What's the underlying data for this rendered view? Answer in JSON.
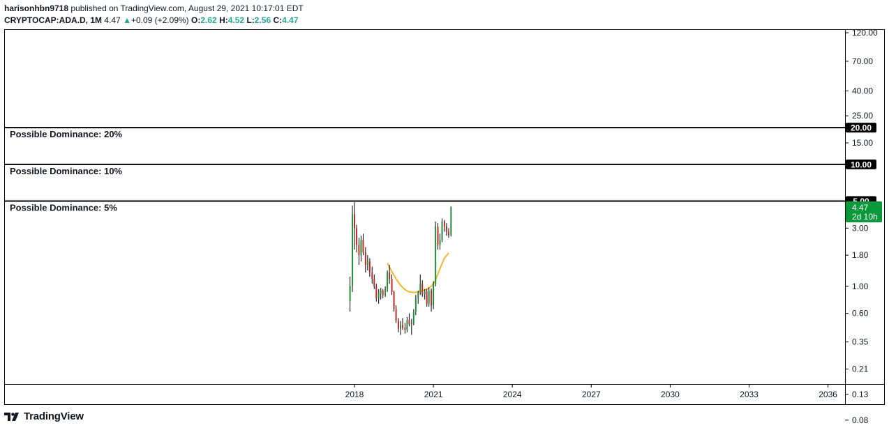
{
  "header": {
    "author": "harisonhbn9718",
    "published_text": "published on TradingView.com, August 29, 2021 10:17:01 EDT",
    "symbol": "CRYPTOCAP:ADA.D, 1M",
    "last": "4.47",
    "change": "+0.09 (+2.09%)",
    "o_label": "O:",
    "o_value": "2.62",
    "h_label": "H:",
    "h_value": "4.52",
    "l_label": "L:",
    "l_value": "2.56",
    "c_label": "C:",
    "c_value": "4.47"
  },
  "logo": {
    "text": "TradingView",
    "icon": "tradingview-logo-icon"
  },
  "colors": {
    "up": "#26a69a",
    "down": "#ef5350",
    "candle_up": "#1f8f3a",
    "candle_down": "#c62828",
    "ma": "#f5b52a",
    "line": "#000000",
    "last_badge": "#089a3a"
  },
  "chart_data": {
    "type": "candlestick",
    "y_scale": "log",
    "y_ticks": [
      "120.00",
      "70.00",
      "40.00",
      "25.00",
      "15.00",
      "3.00",
      "1.80",
      "1.00",
      "0.60",
      "0.35",
      "0.21",
      "0.13",
      "0.08"
    ],
    "x_ticks": [
      "2018",
      "2021",
      "2024",
      "2027",
      "2030",
      "2033",
      "2036"
    ],
    "horizontal_lines": [
      {
        "value": 20,
        "badge": "20.00",
        "label": "Possible Dominance: 20%"
      },
      {
        "value": 10,
        "badge": "10.00",
        "label": "Possible Dominance: 10%"
      },
      {
        "value": 5,
        "badge": "5.00",
        "label": "Possible Dominance: 5%"
      }
    ],
    "last_price": {
      "value": 4.47,
      "badge": "4.47",
      "countdown": "2d 10h"
    },
    "candles": [
      {
        "t": 2017.83,
        "o": 0.75,
        "h": 1.2,
        "l": 0.62,
        "c": 1.0
      },
      {
        "t": 2017.92,
        "o": 1.0,
        "h": 4.6,
        "l": 0.9,
        "c": 3.9
      },
      {
        "t": 2018.0,
        "o": 3.9,
        "h": 4.9,
        "l": 2.0,
        "c": 3.0
      },
      {
        "t": 2018.08,
        "o": 3.0,
        "h": 3.2,
        "l": 1.9,
        "c": 2.2
      },
      {
        "t": 2018.17,
        "o": 2.2,
        "h": 2.5,
        "l": 1.5,
        "c": 1.8
      },
      {
        "t": 2018.25,
        "o": 1.8,
        "h": 2.6,
        "l": 1.6,
        "c": 2.4
      },
      {
        "t": 2018.33,
        "o": 2.4,
        "h": 2.7,
        "l": 1.8,
        "c": 1.9
      },
      {
        "t": 2018.42,
        "o": 1.9,
        "h": 2.1,
        "l": 1.3,
        "c": 1.5
      },
      {
        "t": 2018.5,
        "o": 1.5,
        "h": 1.8,
        "l": 1.35,
        "c": 1.6
      },
      {
        "t": 2018.58,
        "o": 1.6,
        "h": 1.7,
        "l": 1.2,
        "c": 1.3
      },
      {
        "t": 2018.67,
        "o": 1.3,
        "h": 1.45,
        "l": 1.05,
        "c": 1.15
      },
      {
        "t": 2018.75,
        "o": 1.15,
        "h": 1.25,
        "l": 0.95,
        "c": 1.0
      },
      {
        "t": 2018.83,
        "o": 1.0,
        "h": 1.05,
        "l": 0.75,
        "c": 0.8
      },
      {
        "t": 2018.92,
        "o": 0.8,
        "h": 0.95,
        "l": 0.72,
        "c": 0.88
      },
      {
        "t": 2019.0,
        "o": 0.88,
        "h": 0.97,
        "l": 0.78,
        "c": 0.92
      },
      {
        "t": 2019.08,
        "o": 0.92,
        "h": 0.95,
        "l": 0.8,
        "c": 0.85
      },
      {
        "t": 2019.17,
        "o": 0.85,
        "h": 1.0,
        "l": 0.82,
        "c": 0.95
      },
      {
        "t": 2019.25,
        "o": 0.95,
        "h": 1.35,
        "l": 0.9,
        "c": 1.3
      },
      {
        "t": 2019.33,
        "o": 1.3,
        "h": 1.5,
        "l": 1.05,
        "c": 1.15
      },
      {
        "t": 2019.42,
        "o": 1.15,
        "h": 1.25,
        "l": 0.85,
        "c": 0.9
      },
      {
        "t": 2019.5,
        "o": 0.9,
        "h": 0.92,
        "l": 0.62,
        "c": 0.65
      },
      {
        "t": 2019.58,
        "o": 0.65,
        "h": 0.7,
        "l": 0.5,
        "c": 0.52
      },
      {
        "t": 2019.67,
        "o": 0.52,
        "h": 0.55,
        "l": 0.42,
        "c": 0.45
      },
      {
        "t": 2019.75,
        "o": 0.45,
        "h": 0.52,
        "l": 0.4,
        "c": 0.48
      },
      {
        "t": 2019.83,
        "o": 0.48,
        "h": 0.55,
        "l": 0.44,
        "c": 0.46
      },
      {
        "t": 2019.92,
        "o": 0.46,
        "h": 0.5,
        "l": 0.41,
        "c": 0.44
      },
      {
        "t": 2020.0,
        "o": 0.44,
        "h": 0.56,
        "l": 0.42,
        "c": 0.53
      },
      {
        "t": 2020.08,
        "o": 0.53,
        "h": 0.6,
        "l": 0.47,
        "c": 0.49
      },
      {
        "t": 2020.17,
        "o": 0.49,
        "h": 0.54,
        "l": 0.4,
        "c": 0.5
      },
      {
        "t": 2020.25,
        "o": 0.5,
        "h": 0.65,
        "l": 0.48,
        "c": 0.62
      },
      {
        "t": 2020.33,
        "o": 0.62,
        "h": 0.85,
        "l": 0.58,
        "c": 0.8
      },
      {
        "t": 2020.42,
        "o": 0.8,
        "h": 0.92,
        "l": 0.72,
        "c": 0.88
      },
      {
        "t": 2020.5,
        "o": 0.88,
        "h": 1.25,
        "l": 0.85,
        "c": 1.05
      },
      {
        "t": 2020.58,
        "o": 1.05,
        "h": 1.12,
        "l": 0.82,
        "c": 0.86
      },
      {
        "t": 2020.67,
        "o": 0.86,
        "h": 0.95,
        "l": 0.78,
        "c": 0.9
      },
      {
        "t": 2020.75,
        "o": 0.9,
        "h": 0.95,
        "l": 0.68,
        "c": 0.72
      },
      {
        "t": 2020.83,
        "o": 0.72,
        "h": 0.98,
        "l": 0.68,
        "c": 0.92
      },
      {
        "t": 2020.92,
        "o": 0.92,
        "h": 0.96,
        "l": 0.62,
        "c": 0.7
      },
      {
        "t": 2021.0,
        "o": 0.7,
        "h": 1.1,
        "l": 0.65,
        "c": 1.05
      },
      {
        "t": 2021.08,
        "o": 1.05,
        "h": 3.4,
        "l": 1.0,
        "c": 3.1
      },
      {
        "t": 2021.17,
        "o": 3.1,
        "h": 3.3,
        "l": 2.0,
        "c": 2.2
      },
      {
        "t": 2021.25,
        "o": 2.2,
        "h": 2.7,
        "l": 2.0,
        "c": 2.4
      },
      {
        "t": 2021.33,
        "o": 2.4,
        "h": 3.6,
        "l": 2.3,
        "c": 3.4
      },
      {
        "t": 2021.42,
        "o": 3.4,
        "h": 3.5,
        "l": 2.8,
        "c": 3.1
      },
      {
        "t": 2021.5,
        "o": 3.1,
        "h": 3.3,
        "l": 2.6,
        "c": 2.8
      },
      {
        "t": 2021.58,
        "o": 2.8,
        "h": 3.0,
        "l": 2.5,
        "c": 2.62
      },
      {
        "t": 2021.67,
        "o": 2.62,
        "h": 4.52,
        "l": 2.56,
        "c": 4.47
      }
    ],
    "moving_average": [
      {
        "t": 2019.25,
        "v": 1.55
      },
      {
        "t": 2019.42,
        "v": 1.32
      },
      {
        "t": 2019.58,
        "v": 1.15
      },
      {
        "t": 2019.75,
        "v": 1.02
      },
      {
        "t": 2019.92,
        "v": 0.94
      },
      {
        "t": 2020.08,
        "v": 0.9
      },
      {
        "t": 2020.25,
        "v": 0.89
      },
      {
        "t": 2020.42,
        "v": 0.9
      },
      {
        "t": 2020.58,
        "v": 0.92
      },
      {
        "t": 2020.75,
        "v": 0.95
      },
      {
        "t": 2020.92,
        "v": 1.0
      },
      {
        "t": 2021.08,
        "v": 1.12
      },
      {
        "t": 2021.25,
        "v": 1.4
      },
      {
        "t": 2021.42,
        "v": 1.7
      },
      {
        "t": 2021.58,
        "v": 1.88
      }
    ]
  }
}
